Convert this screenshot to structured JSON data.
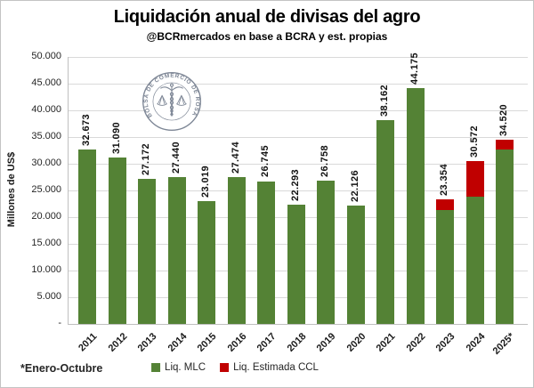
{
  "header": {
    "title": "Liquidación anual de divisas del agro",
    "subtitle": "@BCRmercados en base a BCRA y est. propias"
  },
  "footnote": "*Enero-Octubre",
  "watermark": {
    "text": "BOLSA DE COMERCIO DE ROSARIO"
  },
  "legend": [
    {
      "label": "Liq. MLC",
      "color": "#548235"
    },
    {
      "label": "Liq. Estimada CCL",
      "color": "#C00000"
    }
  ],
  "colors": {
    "mlc_green": "#548235",
    "ccl_red": "#C00000",
    "gridline": "#D9D9D9",
    "axis_line": "#BFBFBF",
    "logo_gray": "#7E8796"
  },
  "chart_data": {
    "type": "bar",
    "stacked": true,
    "title": "Liquidación anual de divisas del agro",
    "subtitle": "@BCRmercados en base a BCRA y est. propias",
    "xlabel": "",
    "ylabel": "Millones de US$",
    "ylim": [
      0,
      50000
    ],
    "grid": true,
    "legend_position": "bottom",
    "categories": [
      "2011",
      "2012",
      "2013",
      "2014",
      "2015",
      "2016",
      "2017",
      "2018",
      "2019",
      "2020",
      "2021",
      "2022",
      "2023",
      "2024",
      "2025*"
    ],
    "series": [
      {
        "name": "Liq. MLC",
        "color": "#548235",
        "values": [
          32673,
          31090,
          27172,
          27440,
          23019,
          27474,
          26745,
          22293,
          26758,
          22126,
          38162,
          44175,
          21300,
          23900,
          32700
        ]
      },
      {
        "name": "Liq. Estimada CCL",
        "color": "#C00000",
        "values": [
          0,
          0,
          0,
          0,
          0,
          0,
          0,
          0,
          0,
          0,
          0,
          0,
          2054,
          6672,
          1820
        ]
      }
    ],
    "totals": [
      32673,
      31090,
      27172,
      27440,
      23019,
      27474,
      26745,
      22293,
      26758,
      22126,
      38162,
      44175,
      23354,
      30572,
      34520
    ],
    "total_labels": [
      "32.673",
      "31.090",
      "27.172",
      "27.440",
      "23.019",
      "27.474",
      "26.745",
      "22.293",
      "26.758",
      "22.126",
      "38.162",
      "44.175",
      "23.354",
      "30.572",
      "34.520"
    ],
    "yticks": [
      {
        "value": 50000,
        "label": "50.000"
      },
      {
        "value": 45000,
        "label": "45.000"
      },
      {
        "value": 40000,
        "label": "40.000"
      },
      {
        "value": 35000,
        "label": "35.000"
      },
      {
        "value": 30000,
        "label": "30.000"
      },
      {
        "value": 25000,
        "label": "25.000"
      },
      {
        "value": 20000,
        "label": "20.000"
      },
      {
        "value": 15000,
        "label": "15.000"
      },
      {
        "value": 10000,
        "label": "10.000"
      },
      {
        "value": 5000,
        "label": "5.000"
      },
      {
        "value": 0,
        "label": "-"
      }
    ]
  }
}
